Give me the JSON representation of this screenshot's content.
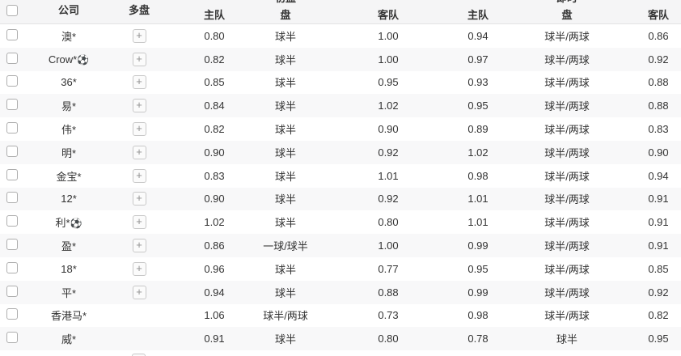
{
  "table": {
    "header": {
      "company": "公司",
      "multi": "多盘",
      "group_initial": "初盘",
      "group_live": "即时",
      "home": "主队",
      "handicap": "盘",
      "away": "客队"
    },
    "icons": {
      "plus": "+",
      "soccer_ball": "⚽"
    },
    "rows": [
      {
        "company": "澳*",
        "ball": false,
        "plus": true,
        "init_home": "0.80",
        "init_pan": "球半",
        "init_away": "1.00",
        "live_home": "0.94",
        "live_pan": "球半/两球",
        "live_away": "0.86"
      },
      {
        "company": "Crow*",
        "ball": true,
        "plus": true,
        "init_home": "0.82",
        "init_pan": "球半",
        "init_away": "1.00",
        "live_home": "0.97",
        "live_pan": "球半/两球",
        "live_away": "0.92"
      },
      {
        "company": "36*",
        "ball": false,
        "plus": true,
        "init_home": "0.85",
        "init_pan": "球半",
        "init_away": "0.95",
        "live_home": "0.93",
        "live_pan": "球半/两球",
        "live_away": "0.88"
      },
      {
        "company": "易*",
        "ball": false,
        "plus": true,
        "init_home": "0.84",
        "init_pan": "球半",
        "init_away": "1.02",
        "live_home": "0.95",
        "live_pan": "球半/两球",
        "live_away": "0.88"
      },
      {
        "company": "伟*",
        "ball": false,
        "plus": true,
        "init_home": "0.82",
        "init_pan": "球半",
        "init_away": "0.90",
        "live_home": "0.89",
        "live_pan": "球半/两球",
        "live_away": "0.83"
      },
      {
        "company": "明*",
        "ball": false,
        "plus": true,
        "init_home": "0.90",
        "init_pan": "球半",
        "init_away": "0.92",
        "live_home": "1.02",
        "live_pan": "球半/两球",
        "live_away": "0.90"
      },
      {
        "company": "金宝*",
        "ball": false,
        "plus": true,
        "init_home": "0.83",
        "init_pan": "球半",
        "init_away": "1.01",
        "live_home": "0.98",
        "live_pan": "球半/两球",
        "live_away": "0.94"
      },
      {
        "company": "12*",
        "ball": false,
        "plus": true,
        "init_home": "0.90",
        "init_pan": "球半",
        "init_away": "0.92",
        "live_home": "1.01",
        "live_pan": "球半/两球",
        "live_away": "0.91"
      },
      {
        "company": "利*",
        "ball": true,
        "plus": true,
        "init_home": "1.02",
        "init_pan": "球半",
        "init_away": "0.80",
        "live_home": "1.01",
        "live_pan": "球半/两球",
        "live_away": "0.91"
      },
      {
        "company": "盈*",
        "ball": false,
        "plus": true,
        "init_home": "0.86",
        "init_pan": "一球/球半",
        "init_away": "1.00",
        "live_home": "0.99",
        "live_pan": "球半/两球",
        "live_away": "0.91"
      },
      {
        "company": "18*",
        "ball": false,
        "plus": true,
        "init_home": "0.96",
        "init_pan": "球半",
        "init_away": "0.77",
        "live_home": "0.95",
        "live_pan": "球半/两球",
        "live_away": "0.85"
      },
      {
        "company": "平*",
        "ball": false,
        "plus": true,
        "init_home": "0.94",
        "init_pan": "球半",
        "init_away": "0.88",
        "live_home": "0.99",
        "live_pan": "球半/两球",
        "live_away": "0.92"
      },
      {
        "company": "香港马*",
        "ball": false,
        "plus": false,
        "init_home": "1.06",
        "init_pan": "球半/两球",
        "init_away": "0.73",
        "live_home": "0.98",
        "live_pan": "球半/两球",
        "live_away": "0.82"
      },
      {
        "company": "威*",
        "ball": false,
        "plus": false,
        "init_home": "0.91",
        "init_pan": "球半",
        "init_away": "0.80",
        "live_home": "0.78",
        "live_pan": "球半",
        "live_away": "0.95"
      }
    ],
    "partial_row": {
      "plus": true
    }
  }
}
